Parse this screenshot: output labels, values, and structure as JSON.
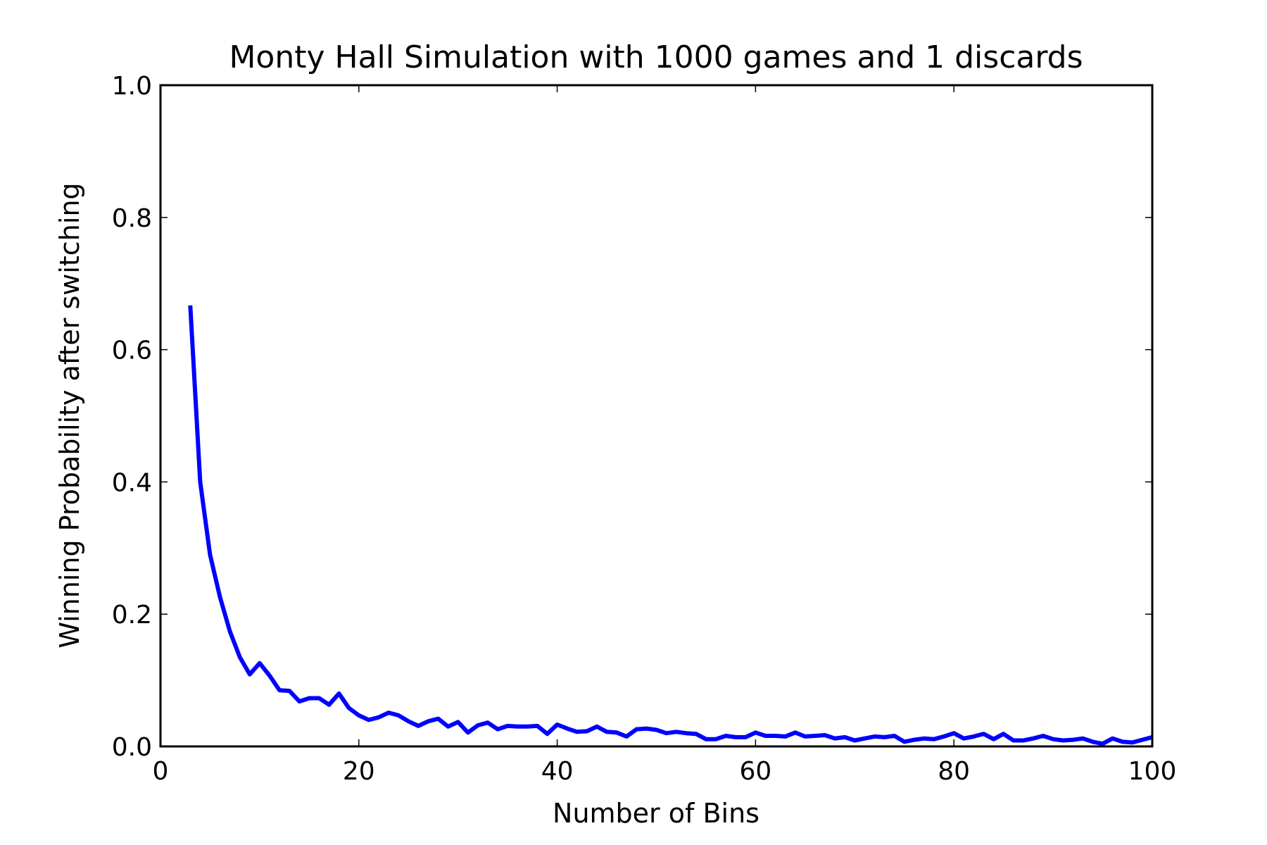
{
  "chart_data": {
    "type": "line",
    "title": "Monty Hall Simulation with 1000 games and 1 discards",
    "xlabel": "Number of Bins",
    "ylabel": "Winning Probability after switching",
    "xlim": [
      0,
      100
    ],
    "ylim": [
      0.0,
      1.0
    ],
    "xticks": [
      "0",
      "20",
      "40",
      "60",
      "80",
      "100"
    ],
    "yticks": [
      "0.0",
      "0.2",
      "0.4",
      "0.6",
      "0.8",
      "1.0"
    ],
    "grid": false,
    "line_color": "#0000ff",
    "series": [
      {
        "x": [
          3,
          4,
          5,
          6,
          7,
          8,
          9,
          10,
          11,
          12,
          13,
          14,
          15,
          16,
          17,
          18,
          19,
          20,
          21,
          22,
          23,
          24,
          25,
          26,
          27,
          28,
          29,
          30,
          31,
          32,
          33,
          34,
          35,
          36,
          37,
          38,
          39,
          40,
          41,
          42,
          43,
          44,
          45,
          46,
          47,
          48,
          49,
          50,
          51,
          52,
          53,
          54,
          55,
          56,
          57,
          58,
          59,
          60,
          61,
          62,
          63,
          64,
          65,
          66,
          67,
          68,
          69,
          70,
          71,
          72,
          73,
          74,
          75,
          76,
          77,
          78,
          79,
          80,
          81,
          82,
          83,
          84,
          85,
          86,
          87,
          88,
          89,
          90,
          91,
          92,
          93,
          94,
          95,
          96,
          97,
          98,
          99,
          100
        ],
        "values": [
          0.667,
          0.4,
          0.29,
          0.226,
          0.174,
          0.135,
          0.109,
          0.126,
          0.107,
          0.085,
          0.084,
          0.068,
          0.073,
          0.073,
          0.063,
          0.08,
          0.058,
          0.047,
          0.04,
          0.044,
          0.051,
          0.047,
          0.038,
          0.031,
          0.038,
          0.042,
          0.03,
          0.037,
          0.021,
          0.032,
          0.036,
          0.026,
          0.031,
          0.03,
          0.03,
          0.031,
          0.019,
          0.033,
          0.027,
          0.022,
          0.023,
          0.03,
          0.022,
          0.021,
          0.015,
          0.026,
          0.027,
          0.025,
          0.02,
          0.022,
          0.02,
          0.019,
          0.011,
          0.011,
          0.016,
          0.014,
          0.014,
          0.021,
          0.016,
          0.016,
          0.015,
          0.021,
          0.015,
          0.016,
          0.017,
          0.012,
          0.014,
          0.009,
          0.012,
          0.015,
          0.014,
          0.016,
          0.007,
          0.01,
          0.012,
          0.011,
          0.015,
          0.02,
          0.012,
          0.015,
          0.019,
          0.011,
          0.019,
          0.009,
          0.009,
          0.012,
          0.016,
          0.011,
          0.009,
          0.01,
          0.012,
          0.007,
          0.004,
          0.012,
          0.007,
          0.006,
          0.01,
          0.014
        ]
      }
    ]
  }
}
